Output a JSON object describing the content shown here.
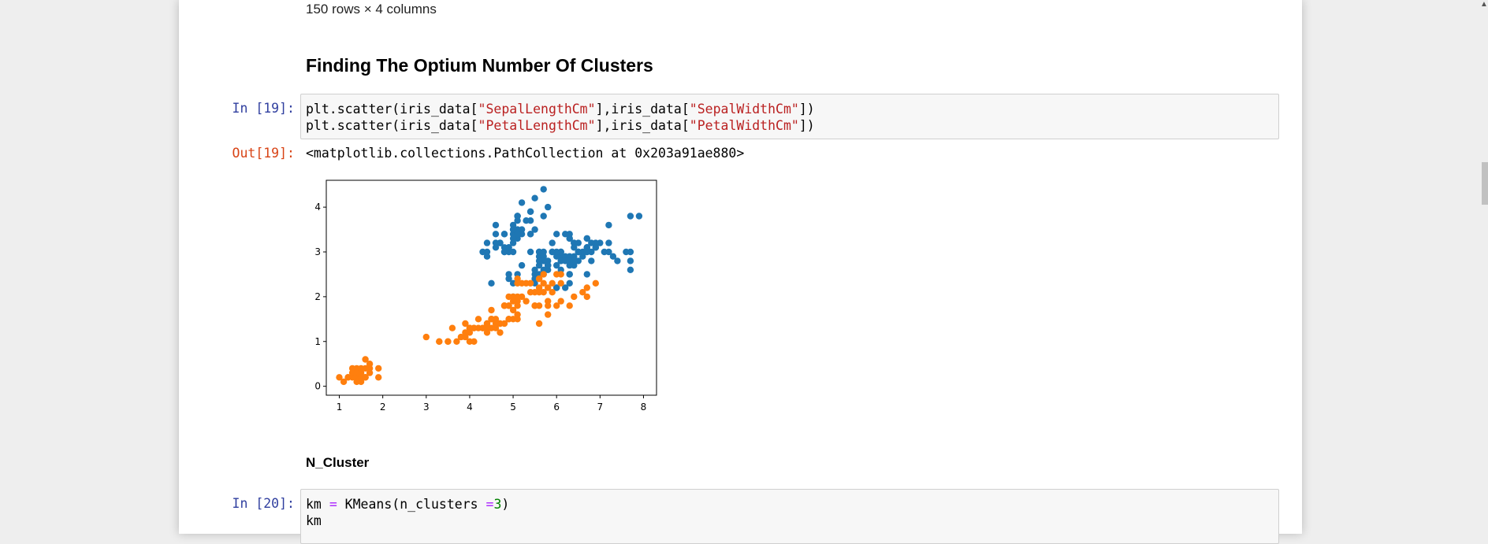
{
  "dataframe_info": "150 rows × 4 columns",
  "heading_optimum": "Finding The Optium Number Of Clusters",
  "cell19": {
    "in_prompt": "In [19]:",
    "out_prompt": "Out[19]:",
    "output_text": "<matplotlib.collections.PathCollection at 0x203a91ae880>"
  },
  "heading_ncluster": "N_Cluster",
  "cell20": {
    "in_prompt": "In [20]:"
  },
  "chart_data": {
    "type": "scatter",
    "title": "",
    "xlabel": "",
    "ylabel": "",
    "xlim": [
      0.7,
      8.3
    ],
    "ylim": [
      -0.2,
      4.6
    ],
    "x_ticks": [
      "1",
      "2",
      "3",
      "4",
      "5",
      "6",
      "7",
      "8"
    ],
    "y_ticks": [
      "0",
      "1",
      "2",
      "3",
      "4"
    ],
    "grid": false,
    "series": [
      {
        "color": "#1f77b4",
        "points": [
          [
            5.1,
            3.5
          ],
          [
            4.9,
            3.0
          ],
          [
            4.7,
            3.2
          ],
          [
            4.6,
            3.1
          ],
          [
            5.0,
            3.6
          ],
          [
            5.4,
            3.9
          ],
          [
            4.6,
            3.4
          ],
          [
            5.0,
            3.4
          ],
          [
            4.4,
            2.9
          ],
          [
            4.9,
            3.1
          ],
          [
            5.4,
            3.7
          ],
          [
            4.8,
            3.4
          ],
          [
            4.8,
            3.0
          ],
          [
            4.3,
            3.0
          ],
          [
            5.8,
            4.0
          ],
          [
            5.7,
            4.4
          ],
          [
            5.4,
            3.9
          ],
          [
            5.1,
            3.5
          ],
          [
            5.7,
            3.8
          ],
          [
            5.1,
            3.8
          ],
          [
            5.4,
            3.4
          ],
          [
            5.1,
            3.7
          ],
          [
            4.6,
            3.6
          ],
          [
            5.1,
            3.3
          ],
          [
            4.8,
            3.4
          ],
          [
            5.0,
            3.0
          ],
          [
            5.0,
            3.4
          ],
          [
            5.2,
            3.5
          ],
          [
            5.2,
            3.4
          ],
          [
            4.7,
            3.2
          ],
          [
            4.8,
            3.1
          ],
          [
            5.4,
            3.4
          ],
          [
            5.2,
            4.1
          ],
          [
            5.5,
            4.2
          ],
          [
            4.9,
            3.1
          ],
          [
            5.0,
            3.2
          ],
          [
            5.5,
            3.5
          ],
          [
            4.4,
            3.0
          ],
          [
            5.1,
            3.4
          ],
          [
            5.0,
            3.5
          ],
          [
            4.5,
            2.3
          ],
          [
            4.4,
            3.2
          ],
          [
            5.0,
            3.5
          ],
          [
            5.1,
            3.8
          ],
          [
            4.8,
            3.0
          ],
          [
            5.1,
            3.8
          ],
          [
            4.6,
            3.2
          ],
          [
            5.3,
            3.7
          ],
          [
            5.0,
            3.3
          ],
          [
            7.0,
            3.2
          ],
          [
            6.4,
            3.2
          ],
          [
            6.9,
            3.1
          ],
          [
            5.5,
            2.3
          ],
          [
            6.5,
            2.8
          ],
          [
            5.7,
            2.8
          ],
          [
            6.3,
            3.3
          ],
          [
            4.9,
            2.4
          ],
          [
            6.6,
            2.9
          ],
          [
            5.2,
            2.7
          ],
          [
            5.0,
            2.0
          ],
          [
            5.9,
            3.0
          ],
          [
            6.0,
            2.2
          ],
          [
            6.1,
            2.9
          ],
          [
            5.6,
            2.9
          ],
          [
            6.7,
            3.1
          ],
          [
            5.6,
            3.0
          ],
          [
            5.8,
            2.7
          ],
          [
            6.2,
            2.2
          ],
          [
            5.6,
            2.5
          ],
          [
            5.9,
            3.2
          ],
          [
            6.1,
            2.8
          ],
          [
            6.3,
            2.5
          ],
          [
            6.1,
            2.8
          ],
          [
            6.4,
            2.9
          ],
          [
            6.6,
            3.0
          ],
          [
            6.8,
            2.8
          ],
          [
            6.7,
            3.0
          ],
          [
            6.0,
            2.9
          ],
          [
            5.7,
            2.6
          ],
          [
            5.5,
            2.4
          ],
          [
            5.5,
            2.4
          ],
          [
            5.8,
            2.7
          ],
          [
            6.0,
            2.7
          ],
          [
            5.4,
            3.0
          ],
          [
            6.0,
            3.4
          ],
          [
            6.7,
            3.1
          ],
          [
            6.3,
            2.3
          ],
          [
            5.6,
            3.0
          ],
          [
            5.5,
            2.5
          ],
          [
            5.5,
            2.6
          ],
          [
            6.1,
            3.0
          ],
          [
            5.8,
            2.6
          ],
          [
            5.0,
            2.3
          ],
          [
            5.6,
            2.7
          ],
          [
            5.7,
            3.0
          ],
          [
            5.7,
            2.9
          ],
          [
            6.2,
            2.9
          ],
          [
            5.1,
            2.5
          ],
          [
            5.7,
            2.8
          ],
          [
            6.3,
            3.3
          ],
          [
            5.8,
            2.7
          ],
          [
            7.1,
            3.0
          ],
          [
            6.3,
            2.9
          ],
          [
            6.5,
            3.0
          ],
          [
            7.6,
            3.0
          ],
          [
            4.9,
            2.5
          ],
          [
            7.3,
            2.9
          ],
          [
            6.7,
            2.5
          ],
          [
            7.2,
            3.6
          ],
          [
            6.5,
            3.2
          ],
          [
            6.4,
            2.7
          ],
          [
            6.8,
            3.0
          ],
          [
            5.7,
            2.5
          ],
          [
            5.8,
            2.8
          ],
          [
            6.4,
            3.2
          ],
          [
            6.5,
            3.0
          ],
          [
            7.7,
            3.8
          ],
          [
            7.7,
            2.6
          ],
          [
            6.0,
            2.2
          ],
          [
            6.9,
            3.2
          ],
          [
            5.6,
            2.8
          ],
          [
            7.7,
            2.8
          ],
          [
            6.3,
            2.7
          ],
          [
            6.7,
            3.3
          ],
          [
            7.2,
            3.2
          ],
          [
            6.2,
            2.8
          ],
          [
            6.1,
            3.0
          ],
          [
            6.4,
            2.8
          ],
          [
            7.2,
            3.0
          ],
          [
            7.4,
            2.8
          ],
          [
            7.9,
            3.8
          ],
          [
            6.4,
            2.8
          ],
          [
            6.3,
            2.8
          ],
          [
            6.1,
            2.6
          ],
          [
            7.7,
            3.0
          ],
          [
            6.3,
            3.4
          ],
          [
            6.4,
            3.1
          ],
          [
            6.0,
            3.0
          ],
          [
            6.9,
            3.1
          ],
          [
            6.7,
            3.1
          ],
          [
            6.9,
            3.1
          ],
          [
            5.8,
            2.7
          ],
          [
            6.8,
            3.2
          ],
          [
            6.7,
            3.3
          ],
          [
            6.7,
            3.0
          ],
          [
            6.3,
            2.5
          ],
          [
            6.5,
            3.0
          ],
          [
            6.2,
            3.4
          ],
          [
            5.9,
            3.0
          ]
        ]
      },
      {
        "color": "#ff7f0e",
        "points": [
          [
            1.4,
            0.2
          ],
          [
            1.3,
            0.2
          ],
          [
            1.5,
            0.2
          ],
          [
            1.4,
            0.4
          ],
          [
            1.7,
            0.4
          ],
          [
            1.4,
            0.3
          ],
          [
            1.5,
            0.1
          ],
          [
            1.1,
            0.1
          ],
          [
            1.2,
            0.2
          ],
          [
            1.3,
            0.4
          ],
          [
            1.7,
            0.3
          ],
          [
            1.5,
            0.3
          ],
          [
            1.0,
            0.2
          ],
          [
            1.7,
            0.5
          ],
          [
            1.9,
            0.2
          ],
          [
            1.6,
            0.2
          ],
          [
            1.6,
            0.4
          ],
          [
            1.5,
            0.4
          ],
          [
            1.6,
            0.2
          ],
          [
            1.4,
            0.1
          ],
          [
            1.9,
            0.4
          ],
          [
            1.6,
            0.6
          ],
          [
            1.3,
            0.3
          ],
          [
            1.2,
            0.2
          ],
          [
            1.5,
            0.2
          ],
          [
            1.6,
            0.2
          ],
          [
            4.7,
            1.4
          ],
          [
            4.5,
            1.5
          ],
          [
            4.9,
            1.5
          ],
          [
            4.0,
            1.3
          ],
          [
            4.6,
            1.5
          ],
          [
            4.5,
            1.3
          ],
          [
            3.3,
            1.0
          ],
          [
            4.6,
            1.3
          ],
          [
            3.9,
            1.4
          ],
          [
            3.5,
            1.0
          ],
          [
            4.2,
            1.5
          ],
          [
            4.0,
            1.0
          ],
          [
            4.7,
            1.4
          ],
          [
            3.6,
            1.3
          ],
          [
            4.4,
            1.4
          ],
          [
            4.1,
            1.0
          ],
          [
            4.5,
            1.5
          ],
          [
            3.9,
            1.1
          ],
          [
            4.8,
            1.8
          ],
          [
            4.0,
            1.3
          ],
          [
            4.9,
            1.5
          ],
          [
            4.7,
            1.2
          ],
          [
            4.3,
            1.3
          ],
          [
            4.4,
            1.4
          ],
          [
            4.8,
            1.4
          ],
          [
            5.0,
            1.7
          ],
          [
            3.5,
            1.0
          ],
          [
            3.8,
            1.1
          ],
          [
            3.7,
            1.0
          ],
          [
            3.9,
            1.2
          ],
          [
            5.1,
            1.6
          ],
          [
            4.5,
            1.5
          ],
          [
            4.4,
            1.3
          ],
          [
            4.1,
            1.3
          ],
          [
            4.0,
            1.3
          ],
          [
            4.4,
            1.2
          ],
          [
            4.6,
            1.4
          ],
          [
            4.0,
            1.2
          ],
          [
            3.3,
            1.0
          ],
          [
            4.2,
            1.3
          ],
          [
            4.3,
            1.3
          ],
          [
            3.0,
            1.1
          ],
          [
            4.1,
            1.3
          ],
          [
            6.0,
            2.5
          ],
          [
            5.1,
            1.9
          ],
          [
            5.9,
            2.1
          ],
          [
            5.6,
            1.8
          ],
          [
            5.8,
            2.2
          ],
          [
            6.6,
            2.1
          ],
          [
            4.5,
            1.7
          ],
          [
            6.3,
            1.8
          ],
          [
            5.8,
            1.8
          ],
          [
            6.1,
            2.5
          ],
          [
            5.1,
            2.0
          ],
          [
            5.3,
            1.9
          ],
          [
            5.5,
            2.1
          ],
          [
            5.0,
            2.0
          ],
          [
            5.1,
            2.4
          ],
          [
            5.3,
            2.3
          ],
          [
            5.5,
            1.8
          ],
          [
            6.7,
            2.2
          ],
          [
            6.9,
            2.3
          ],
          [
            5.0,
            1.5
          ],
          [
            5.7,
            2.3
          ],
          [
            4.9,
            2.0
          ],
          [
            6.7,
            2.0
          ],
          [
            4.9,
            1.8
          ],
          [
            5.7,
            2.1
          ],
          [
            6.0,
            1.8
          ],
          [
            4.8,
            1.8
          ],
          [
            4.9,
            1.8
          ],
          [
            5.6,
            2.1
          ],
          [
            5.8,
            1.6
          ],
          [
            6.1,
            1.9
          ],
          [
            6.4,
            2.0
          ],
          [
            5.6,
            2.2
          ],
          [
            5.1,
            1.5
          ],
          [
            5.6,
            1.4
          ],
          [
            6.1,
            2.3
          ],
          [
            5.6,
            2.4
          ],
          [
            5.5,
            1.8
          ],
          [
            4.8,
            1.8
          ],
          [
            5.4,
            2.1
          ],
          [
            5.6,
            2.4
          ],
          [
            5.1,
            2.3
          ],
          [
            5.9,
            2.3
          ],
          [
            5.7,
            2.5
          ],
          [
            5.2,
            2.3
          ],
          [
            5.0,
            1.9
          ],
          [
            5.2,
            2.0
          ],
          [
            5.4,
            2.3
          ],
          [
            5.1,
            1.8
          ],
          [
            5.8,
            1.9
          ]
        ]
      }
    ]
  }
}
